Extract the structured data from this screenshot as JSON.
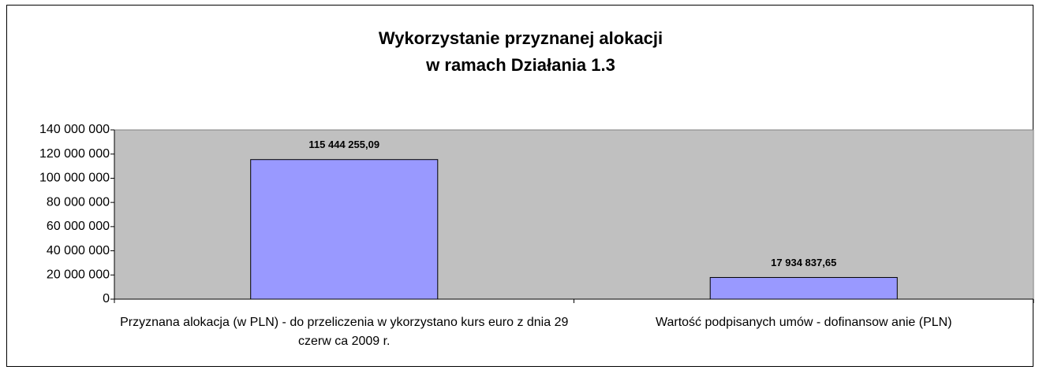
{
  "chart_data": {
    "type": "bar",
    "title": [
      "Wykorzystanie przyznanej alokacji",
      "w ramach Działania 1.3"
    ],
    "categories": [
      "Przyznana alokacja (w  PLN) - do przeliczenia w ykorzystano kurs euro z dnia 29 czerw ca 2009 r.",
      "Wartość podpisanych umów  - dofinansow anie (PLN)"
    ],
    "values": [
      115444255.09,
      17934837.65
    ],
    "value_labels": [
      "115 444 255,09",
      "17 934 837,65"
    ],
    "color": "#9999ff",
    "ylim": [
      0,
      140000000
    ],
    "yticks": [
      0,
      {
        "value": 20000000,
        "label": "20 000 000"
      },
      {
        "value": 40000000,
        "label": "40 000 000"
      },
      {
        "value": 60000000,
        "label": "60 000 000"
      },
      {
        "value": 80000000,
        "label": "80 000 000"
      },
      {
        "value": 100000000,
        "label": "100 000 000"
      },
      {
        "value": 120000000,
        "label": "120 000 000"
      },
      {
        "value": 140000000,
        "label": "140 000 000"
      }
    ],
    "grid": false
  }
}
